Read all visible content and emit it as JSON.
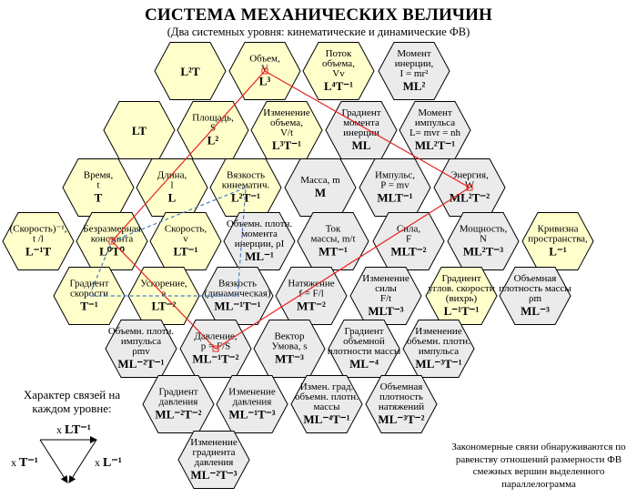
{
  "title": "СИСТЕМА МЕХАНИЧЕСКИХ ВЕЛИЧИН",
  "subtitle": "(Два системных уровня:  кинематические и динамические ФВ)",
  "colors": {
    "kinematic_fill": "#ffffcc",
    "dynamic_fill": "#ebebeb",
    "red_line": "#e8231f",
    "blue_line": "#4a78c8",
    "stroke": "#000000"
  },
  "hexes": [
    {
      "id": "L2T",
      "name": [],
      "formula": "L²T",
      "level": "kin"
    },
    {
      "id": "volume",
      "name": [
        "Объем,",
        "V"
      ],
      "formula": "L³",
      "level": "kin"
    },
    {
      "id": "volume-flow",
      "name": [
        "Поток",
        "объема,",
        "Vv"
      ],
      "formula": "L⁴T⁻¹",
      "level": "kin"
    },
    {
      "id": "moment-inertia",
      "name": [
        "Момент",
        "инерции,",
        "I = mr²"
      ],
      "formula": "ML²",
      "level": "dyn"
    },
    {
      "id": "LT",
      "name": [],
      "formula": "LT",
      "level": "kin"
    },
    {
      "id": "area",
      "name": [
        "Площадь,",
        "S"
      ],
      "formula": "L²",
      "level": "kin"
    },
    {
      "id": "volume-change",
      "name": [
        "Изменение",
        "объема,",
        "V/t"
      ],
      "formula": "L³T⁻¹",
      "level": "kin"
    },
    {
      "id": "moment-gradient",
      "name": [
        "Градиент",
        "момента",
        "инерции"
      ],
      "formula": "ML",
      "level": "dyn"
    },
    {
      "id": "angular-momentum",
      "name": [
        "Момент",
        "импульса",
        "L= mvr = nh"
      ],
      "formula": "ML²T⁻¹",
      "level": "dyn"
    },
    {
      "id": "time",
      "name": [
        "Время,",
        "t"
      ],
      "formula": "T",
      "level": "kin"
    },
    {
      "id": "length",
      "name": [
        "Длина,",
        "l"
      ],
      "formula": "L",
      "level": "kin"
    },
    {
      "id": "kinematic-viscosity",
      "name": [
        "Вязкость",
        "кинематич."
      ],
      "formula": "L²T⁻¹",
      "level": "kin"
    },
    {
      "id": "mass",
      "name": [
        "Масса, m"
      ],
      "formula": "M",
      "level": "dyn"
    },
    {
      "id": "momentum",
      "name": [
        "Импульс,",
        "P = mv"
      ],
      "formula": "MLT⁻¹",
      "level": "dyn"
    },
    {
      "id": "energy",
      "name": [
        "Энергия,",
        "W"
      ],
      "formula": "ML²T⁻²",
      "level": "dyn"
    },
    {
      "id": "speed-inverse",
      "name": [
        "(Скорость)⁻¹,",
        "t /l"
      ],
      "formula": "L⁻¹T",
      "level": "kin"
    },
    {
      "id": "dimensionless",
      "name": [
        "Безразмерная",
        "константа"
      ],
      "formula": "L⁰T⁰",
      "level": "kin"
    },
    {
      "id": "speed",
      "name": [
        "Скорость,",
        "v"
      ],
      "formula": "LT⁻¹",
      "level": "kin"
    },
    {
      "id": "vol-density-moment",
      "name": [
        "Объемн. плотн.",
        "момента",
        "инерции, ρI"
      ],
      "formula": "ML⁻¹",
      "level": "dyn"
    },
    {
      "id": "mass-current",
      "name": [
        "Ток",
        "массы, m/t"
      ],
      "formula": "MT⁻¹",
      "level": "dyn"
    },
    {
      "id": "force",
      "name": [
        "Сила,",
        "F"
      ],
      "formula": "MLT⁻²",
      "level": "dyn"
    },
    {
      "id": "power",
      "name": [
        "Мощность,",
        "N"
      ],
      "formula": "ML²T⁻³",
      "level": "dyn"
    },
    {
      "id": "curvature",
      "name": [
        "Кривизна",
        "пространства,"
      ],
      "formula": "L⁻¹",
      "level": "kin"
    },
    {
      "id": "speed-gradient",
      "name": [
        "Градиент",
        "скорости"
      ],
      "formula": "T⁻¹",
      "level": "kin"
    },
    {
      "id": "acceleration",
      "name": [
        "Ускорение,",
        "a"
      ],
      "formula": "LT⁻²",
      "level": "kin"
    },
    {
      "id": "dynamic-viscosity",
      "name": [
        "Вязкость",
        "(динамическая)"
      ],
      "formula": "ML⁻¹T⁻¹",
      "level": "dyn"
    },
    {
      "id": "tension",
      "name": [
        "Натяжение",
        "f = F/l"
      ],
      "formula": "MT⁻²",
      "level": "dyn"
    },
    {
      "id": "force-change",
      "name": [
        "Изменение",
        "силы",
        "F/t"
      ],
      "formula": "MLT⁻³",
      "level": "dyn"
    },
    {
      "id": "angular-speed-gradient",
      "name": [
        "Градиент",
        "углов. скорости",
        "(вихрь)"
      ],
      "formula": "L⁻¹T⁻¹",
      "level": "kin"
    },
    {
      "id": "mass-density",
      "name": [
        "Объемная",
        "плотность массы",
        "ρm"
      ],
      "formula": "ML⁻³",
      "level": "dyn"
    },
    {
      "id": "momentum-density",
      "name": [
        "Объемн. плотн.",
        "импульса",
        "ρmv"
      ],
      "formula": "ML⁻²T⁻¹",
      "level": "dyn"
    },
    {
      "id": "pressure",
      "name": [
        "Давление,",
        "p = F/S"
      ],
      "formula": "ML⁻¹T⁻²",
      "level": "dyn"
    },
    {
      "id": "umov-vector",
      "name": [
        "Вектор",
        "Умова, s"
      ],
      "formula": "MT⁻³",
      "level": "dyn"
    },
    {
      "id": "mass-density-gradient",
      "name": [
        "Градиент",
        "объемной",
        "плотности массы"
      ],
      "formula": "ML⁻⁴",
      "level": "dyn"
    },
    {
      "id": "momentum-density-change",
      "name": [
        "Изменение",
        "объемн. плотн.",
        "импульса"
      ],
      "formula": "ML⁻³T⁻¹",
      "level": "dyn"
    },
    {
      "id": "pressure-gradient",
      "name": [
        "Градиент",
        "давления"
      ],
      "formula": "ML⁻²T⁻²",
      "level": "dyn"
    },
    {
      "id": "pressure-change",
      "name": [
        "Изменение",
        "давления"
      ],
      "formula": "ML⁻¹T⁻³",
      "level": "dyn"
    },
    {
      "id": "density-grad-change",
      "name": [
        "Измен. град.",
        "объемн. плотн.",
        "массы"
      ],
      "formula": "ML⁻⁴T⁻¹",
      "level": "dyn"
    },
    {
      "id": "tension-density",
      "name": [
        "Объемная",
        "плотность",
        "натяжений"
      ],
      "formula": "ML⁻³T⁻²",
      "level": "dyn"
    },
    {
      "id": "pressure-gradient-change",
      "name": [
        "Изменение",
        "градиента",
        "давления"
      ],
      "formula": "ML⁻²T⁻³",
      "level": "dyn"
    }
  ],
  "legend": {
    "title": "Характер связей на каждом уровне:",
    "top": "LT⁻¹",
    "left": "T⁻¹",
    "right": "L⁻¹",
    "multiplier": "x"
  },
  "note": "Закономерные связи обнаруживаются по равенству отношений размерности ФВ смежных вершин выделенного параллелограмма"
}
